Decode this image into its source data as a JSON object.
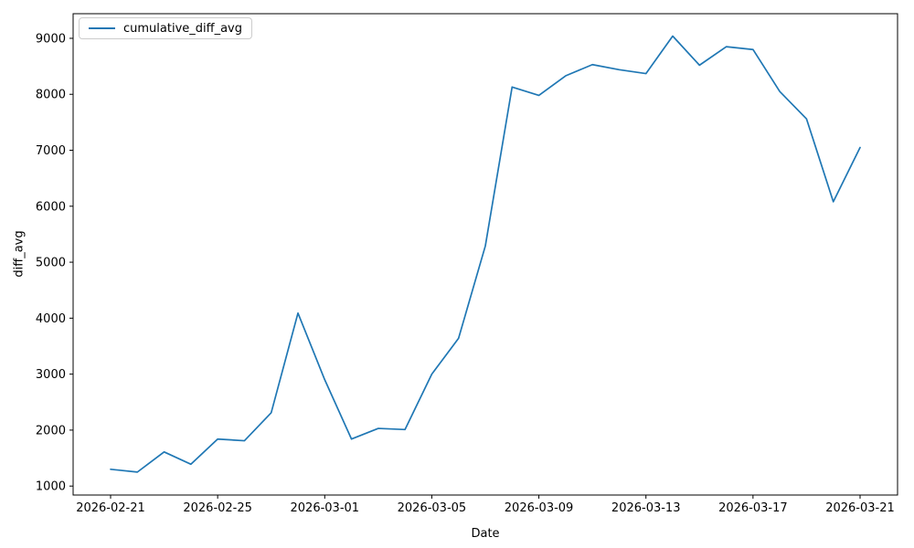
{
  "chart_data": {
    "type": "line",
    "title": "",
    "xlabel": "Date",
    "ylabel": "diff_avg",
    "grid": false,
    "legend": {
      "position": "upper left",
      "entries": [
        "cumulative_diff_avg"
      ]
    },
    "x": [
      "2026-02-21",
      "2026-02-22",
      "2026-02-23",
      "2026-02-24",
      "2026-02-25",
      "2026-02-26",
      "2026-02-27",
      "2026-02-28",
      "2026-03-01",
      "2026-03-02",
      "2026-03-03",
      "2026-03-04",
      "2026-03-05",
      "2026-03-06",
      "2026-03-07",
      "2026-03-08",
      "2026-03-09",
      "2026-03-10",
      "2026-03-11",
      "2026-03-12",
      "2026-03-13",
      "2026-03-14",
      "2026-03-15",
      "2026-03-16",
      "2026-03-17",
      "2026-03-18",
      "2026-03-19",
      "2026-03-20",
      "2026-03-21"
    ],
    "series": [
      {
        "name": "cumulative_diff_avg",
        "color": "#1f77b4",
        "values": [
          1300,
          1250,
          1610,
          1390,
          1840,
          1810,
          2310,
          4090,
          2900,
          1840,
          2030,
          2010,
          3000,
          3640,
          5290,
          8130,
          7980,
          8330,
          8530,
          8440,
          8370,
          9040,
          8520,
          8850,
          8800,
          8050,
          7560,
          6080,
          7050
        ]
      }
    ],
    "x_tick_labels": [
      "2026-02-21",
      "2026-02-25",
      "2026-03-01",
      "2026-03-05",
      "2026-03-09",
      "2026-03-13",
      "2026-03-17",
      "2026-03-21"
    ],
    "y_ticks": [
      1000,
      2000,
      3000,
      4000,
      5000,
      6000,
      7000,
      8000,
      9000
    ],
    "xlim_days": [
      -1.4,
      29.4
    ],
    "ylim": [
      840,
      9440
    ]
  }
}
